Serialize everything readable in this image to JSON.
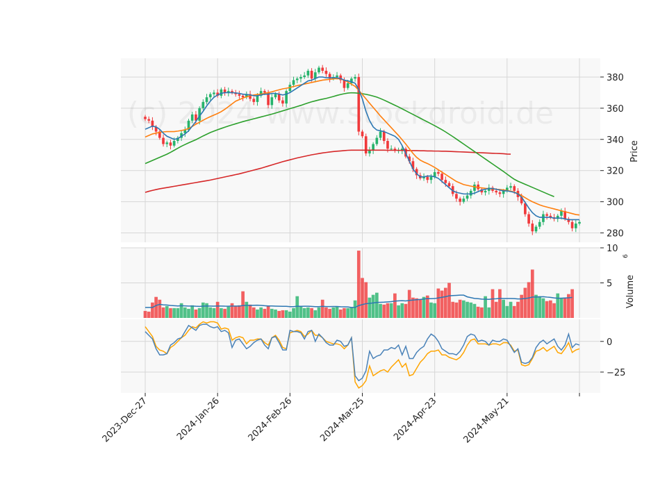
{
  "watermark": "(c) 2024 www.stockdroid.de",
  "colors": {
    "up": "#26b36b",
    "down": "#f0393b",
    "ma_blue": "#2c77b3",
    "ma_orange": "#ff7f0e",
    "ma_green": "#2ca02c",
    "ma_red": "#d62728",
    "vol_avg": "#2c77b3",
    "osc_blue": "#4a82b8",
    "osc_orange": "#ffa500"
  },
  "chart_data": [
    {
      "type": "candlestick",
      "ylabel": "Price",
      "ylim": [
        274,
        392
      ],
      "yticks": [
        "280",
        "300",
        "320",
        "340",
        "360",
        "380"
      ],
      "yticks_values": [
        280,
        300,
        320,
        340,
        360,
        380
      ],
      "x_tick_labels": [
        "2023-Dec-27",
        "2024-Jan-26",
        "2024-Feb-26",
        "2024-Mar-25",
        "2024-Apr-23",
        "2024-May-21",
        ""
      ],
      "x_tick_index": [
        0,
        20,
        40,
        60,
        80,
        100,
        120
      ],
      "close": [
        353,
        352,
        348,
        345,
        341,
        337,
        338,
        336,
        339,
        341,
        344,
        346,
        352,
        356,
        352,
        360,
        364,
        367,
        369,
        370,
        368,
        372,
        370,
        371,
        370,
        369,
        368,
        367,
        369,
        366,
        364,
        368,
        371,
        370,
        362,
        367,
        369,
        365,
        363,
        371,
        375,
        378,
        379,
        380,
        381,
        384,
        379,
        383,
        386,
        384,
        382,
        379,
        380,
        381,
        378,
        373,
        376,
        379,
        380,
        345,
        342,
        331,
        333,
        337,
        341,
        345,
        339,
        334,
        334,
        333,
        333,
        334,
        329,
        326,
        321,
        317,
        315,
        316,
        314,
        316,
        319,
        318,
        314,
        312,
        310,
        305,
        302,
        300,
        302,
        304,
        307,
        311,
        308,
        306,
        307,
        309,
        307,
        306,
        305,
        307,
        309,
        310,
        307,
        303,
        299,
        292,
        286,
        281,
        284,
        287,
        292,
        291,
        290,
        289,
        291,
        294,
        289,
        287,
        283,
        286,
        287
      ],
      "ma_blue": [
        346.5,
        347.5,
        348.5,
        348,
        346.5,
        344,
        342,
        341,
        340,
        340.5,
        342,
        343.5,
        345.5,
        348.5,
        351.5,
        355,
        358,
        361.5,
        364.5,
        367,
        368.5,
        369.5,
        370,
        370,
        370,
        369.8,
        369.5,
        369,
        368.8,
        368.5,
        368,
        368,
        368.5,
        369,
        369,
        369.5,
        369.5,
        369,
        368.5,
        369,
        370,
        371.5,
        373,
        374.5,
        376,
        377.5,
        378,
        379,
        380,
        380,
        379.5,
        379.5,
        379.5,
        379.5,
        379,
        378,
        377.5,
        377,
        376,
        372,
        366,
        358,
        352,
        348,
        346,
        345.5,
        345,
        344,
        343,
        342,
        340,
        336,
        331,
        326,
        321,
        318,
        316,
        316,
        316.5,
        316.5,
        316,
        315,
        313,
        311,
        309,
        307,
        306,
        305.5,
        305,
        305,
        305,
        305.5,
        306.5,
        307.5,
        308,
        308.5,
        308.5,
        308,
        307.5,
        307,
        307,
        306.5,
        306,
        305,
        303,
        299.5,
        296,
        293,
        291,
        290,
        290,
        290,
        290,
        289.5,
        289.5,
        289.5,
        289,
        288.5,
        288.5,
        288.5,
        288.5
      ],
      "ma_orange": [
        341.5,
        342.5,
        343.5,
        344,
        344.5,
        344.8,
        345,
        345,
        345,
        345.3,
        345.7,
        346.2,
        347,
        348.3,
        349.7,
        351,
        352.3,
        353.5,
        354.6,
        355.6,
        356.6,
        357.8,
        359.3,
        361,
        362.8,
        364.5,
        365.5,
        366.5,
        367.3,
        368,
        368.5,
        368.8,
        369,
        369.5,
        370,
        370.5,
        371.2,
        371.8,
        372.4,
        372.8,
        373.3,
        373.9,
        374.5,
        375,
        375.5,
        376,
        376.5,
        377,
        377.5,
        378,
        378.3,
        378.5,
        378.8,
        379,
        378.8,
        378,
        376.8,
        375.4,
        374,
        371.5,
        368.8,
        366,
        363.2,
        360.5,
        357.8,
        355,
        352.5,
        350,
        347.5,
        345,
        342.5,
        339.8,
        337,
        334,
        331,
        328.5,
        326.7,
        325.5,
        324.5,
        323.3,
        322,
        320.5,
        319,
        317.5,
        316,
        314.5,
        313,
        312,
        311,
        310.5,
        310,
        309.6,
        309.2,
        308.9,
        308.6,
        308.4,
        308.2,
        308,
        307.8,
        307.6,
        307.2,
        306.8,
        306.2,
        305.2,
        304,
        302.6,
        301.2,
        300,
        299,
        298,
        297.2,
        296.6,
        296,
        295.4,
        294.8,
        294.2,
        293.6,
        293,
        292.4,
        291.8,
        291.5
      ],
      "ma_green": [
        324.5,
        325.5,
        326.5,
        327.5,
        328.5,
        329.5,
        330.5,
        331.7,
        333,
        334.3,
        335.6,
        336.7,
        337.8,
        338.8,
        339.8,
        341,
        342.2,
        343.3,
        344.4,
        345.3,
        346.2,
        347,
        347.8,
        348.6,
        349.3,
        350,
        350.7,
        351.4,
        352,
        352.6,
        353.2,
        353.8,
        354.4,
        355,
        355.6,
        356.2,
        356.9,
        357.6,
        358.3,
        359,
        359.7,
        360.4,
        361.1,
        361.8,
        362.6,
        363.4,
        364.1,
        364.7,
        365.3,
        365.8,
        366.3,
        366.9,
        367.5,
        368.2,
        368.8,
        369.3,
        369.7,
        369.9,
        369.8,
        369.6,
        369.3,
        368.9,
        368.4,
        367.8,
        367.1,
        366.2,
        365.2,
        364.1,
        363,
        361.9,
        360.8,
        359.6,
        358.4,
        357.2,
        356,
        354.8,
        353.6,
        352.4,
        351.2,
        350,
        348.8,
        347.5,
        346.2,
        344.8,
        343.3,
        341.8,
        340.2,
        338.6,
        337,
        335.4,
        333.8,
        332.2,
        330.6,
        329,
        327.4,
        325.8,
        324.2,
        322.6,
        321,
        319.4,
        317.7,
        316,
        314.4,
        313.2,
        312.2,
        311.2,
        310.2,
        309.2,
        308.2,
        307.2,
        306.2,
        305.2,
        304.2,
        303.3
      ],
      "ma_red": [
        306,
        306.7,
        307.3,
        307.8,
        308.3,
        308.7,
        309.1,
        309.5,
        309.9,
        310.3,
        310.7,
        311.1,
        311.5,
        311.9,
        312.3,
        312.7,
        313.1,
        313.5,
        313.9,
        314.4,
        314.9,
        315.4,
        315.9,
        316.4,
        316.9,
        317.4,
        317.9,
        318.5,
        319.1,
        319.7,
        320.3,
        320.9,
        321.5,
        322.2,
        322.9,
        323.6,
        324.3,
        325,
        325.7,
        326.3,
        326.9,
        327.5,
        328.1,
        328.6,
        329.1,
        329.6,
        330.1,
        330.5,
        330.9,
        331.3,
        331.6,
        331.9,
        332.2,
        332.4,
        332.6,
        332.8,
        333,
        333.1,
        333.1,
        333.1,
        333.1,
        333.1,
        333.1,
        333.1,
        333.1,
        333.1,
        333.1,
        333,
        333,
        333,
        333,
        332.9,
        332.9,
        332.8,
        332.8,
        332.8,
        332.7,
        332.7,
        332.6,
        332.6,
        332.5,
        332.5,
        332.4,
        332.4,
        332.3,
        332.2,
        332.1,
        332,
        331.9,
        331.8,
        331.7,
        331.6,
        331.5,
        331.4,
        331.3,
        331.2,
        331.1,
        331,
        330.9,
        330.8,
        330.6,
        330.5
      ]
    },
    {
      "type": "bar",
      "ylabel": "Volume",
      "ylabel_exponent": "6",
      "ylim": [
        0,
        10
      ],
      "yticks": [
        "5",
        "10"
      ],
      "yticks_values": [
        5,
        10
      ],
      "values": [
        1.0,
        0.9,
        2.2,
        3.0,
        2.6,
        1.5,
        1.7,
        1.4,
        1.4,
        1.4,
        2.1,
        1.5,
        1.3,
        1.8,
        1.2,
        1.4,
        2.2,
        2.1,
        1.5,
        1.4,
        2.3,
        1.4,
        1.3,
        1.6,
        2.1,
        1.7,
        1.8,
        3.8,
        2.3,
        1.9,
        1.5,
        1.2,
        1.5,
        1.3,
        1.7,
        1.3,
        1.2,
        1.0,
        1.1,
        1.1,
        0.9,
        1.4,
        3.1,
        1.6,
        1.4,
        1.5,
        1.4,
        1.1,
        1.5,
        2.6,
        1.5,
        1.3,
        1.5,
        1.6,
        1.2,
        1.4,
        1.4,
        1.5,
        2.5,
        9.6,
        5.7,
        5.1,
        2.9,
        3.3,
        3.6,
        2.0,
        1.9,
        2.1,
        2.1,
        3.5,
        1.8,
        2.1,
        2.0,
        4.0,
        2.9,
        2.8,
        2.7,
        3.0,
        3.2,
        2.2,
        2.1,
        4.2,
        3.9,
        4.3,
        5.0,
        2.3,
        2.2,
        2.6,
        2.5,
        2.3,
        2.2,
        2.0,
        1.6,
        1.5,
        3.1,
        1.5,
        4.1,
        2.3,
        4.1,
        2.6,
        1.7,
        2.3,
        1.7,
        2.3,
        3.3,
        4.3,
        5.1,
        6.9,
        3.3,
        3.1,
        2.8,
        2.4,
        2.5,
        2.1,
        3.5,
        2.8,
        2.9,
        3.4,
        4.1
      ]
    },
    {
      "type": "line",
      "ylim": [
        -42,
        18
      ],
      "yticks": [
        "0",
        "−25"
      ],
      "yticks_values": [
        0,
        -25
      ],
      "series_blue": [
        8,
        5,
        2,
        -6,
        -11,
        -11,
        -10,
        -3,
        -1,
        2,
        3,
        8,
        13,
        11,
        9,
        13,
        14,
        14,
        12,
        11,
        12,
        8,
        9,
        7,
        -5,
        1,
        2,
        -2,
        -6,
        -4,
        -1,
        1,
        2,
        -3,
        -6,
        3,
        4,
        -1,
        -7,
        -7,
        9,
        8,
        8,
        7,
        2,
        8,
        9,
        0,
        6,
        3,
        -1,
        -3,
        -3,
        1,
        0,
        -4,
        -3,
        3,
        -28,
        -32,
        -30,
        -24,
        -8,
        -14,
        -12,
        -11,
        -7,
        -7,
        -5,
        -6,
        -3,
        -11,
        -4,
        -14,
        -14,
        -9,
        -6,
        -4,
        2,
        6,
        4,
        0,
        -6,
        -8,
        -10,
        -10,
        -11,
        -8,
        -3,
        4,
        6,
        5,
        0,
        1,
        0,
        -3,
        1,
        0,
        0,
        2,
        1,
        -4,
        -9,
        -6,
        -17,
        -18,
        -17,
        -13,
        -5,
        -1,
        1,
        -2,
        0,
        2,
        -4,
        -7,
        -3,
        6,
        -5,
        -2,
        -3
      ],
      "series_orange": [
        12,
        8,
        4,
        -4,
        -7,
        -8,
        -10,
        -5,
        -3,
        0,
        3,
        5,
        9,
        12,
        11,
        14,
        16,
        15,
        16,
        16,
        15,
        10,
        11,
        10,
        1,
        3,
        4,
        3,
        -2,
        1,
        1,
        2,
        2,
        -1,
        -3,
        3,
        5,
        1,
        -5,
        -6,
        7,
        8,
        9,
        8,
        4,
        6,
        9,
        5,
        5,
        3,
        0,
        -1,
        -2,
        -2,
        -3,
        -6,
        -3,
        3,
        -33,
        -38,
        -36,
        -32,
        -20,
        -28,
        -26,
        -24,
        -23,
        -25,
        -21,
        -18,
        -15,
        -21,
        -18,
        -28,
        -27,
        -22,
        -17,
        -14,
        -10,
        -8,
        -8,
        -7,
        -11,
        -11,
        -13,
        -14,
        -15,
        -13,
        -9,
        -3,
        1,
        2,
        -2,
        -2,
        -2,
        -3,
        -2,
        -2,
        -3,
        -1,
        -1,
        -3,
        -8,
        -7,
        -19,
        -20,
        -19,
        -14,
        -8,
        -7,
        -5,
        -8,
        -6,
        -4,
        -9,
        -10,
        -6,
        -1,
        -9,
        -7,
        -6
      ]
    }
  ]
}
